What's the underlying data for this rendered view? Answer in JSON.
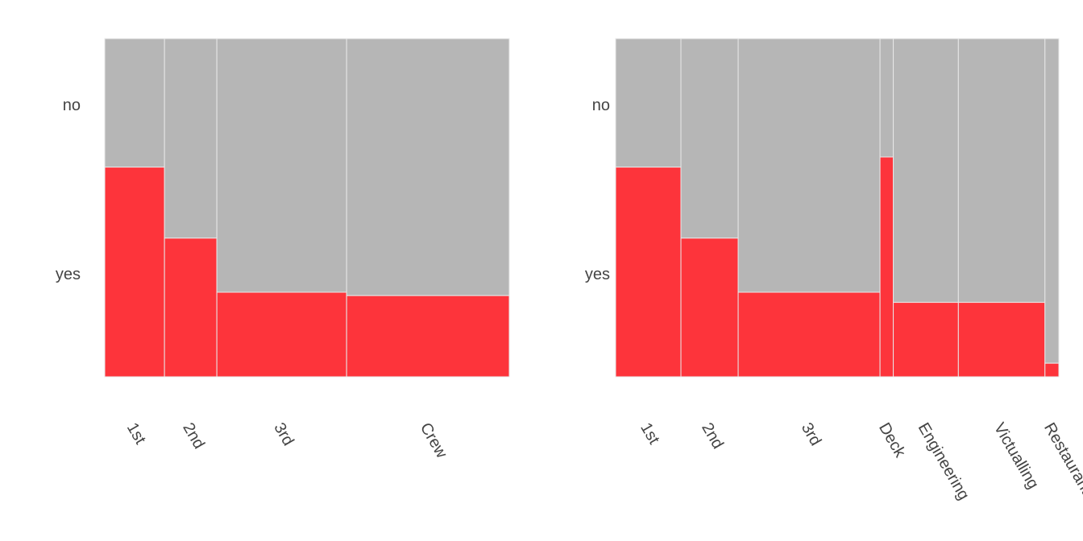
{
  "chart_data": [
    {
      "type": "mosaic",
      "y_categories": [
        "no",
        "yes"
      ],
      "colors": {
        "no": "#b6b6b6",
        "yes": "#fd343b",
        "divider": "#e8e8e8"
      },
      "categories": [
        "1st",
        "2nd",
        "3rd",
        "Crew"
      ],
      "counts": [
        325,
        285,
        706,
        885
      ],
      "yes_share": [
        0.62,
        0.41,
        0.25,
        0.24
      ]
    },
    {
      "type": "mosaic",
      "y_categories": [
        "no",
        "yes"
      ],
      "colors": {
        "no": "#b6b6b6",
        "yes": "#fd343b",
        "divider": "#e8e8e8"
      },
      "categories": [
        "1st",
        "2nd",
        "3rd",
        "Deck",
        "Engineering",
        "Victualling",
        "Restaurant"
      ],
      "counts": [
        325,
        285,
        706,
        66,
        324,
        431,
        69
      ],
      "yes_share": [
        0.62,
        0.41,
        0.25,
        0.65,
        0.22,
        0.22,
        0.04
      ]
    }
  ]
}
